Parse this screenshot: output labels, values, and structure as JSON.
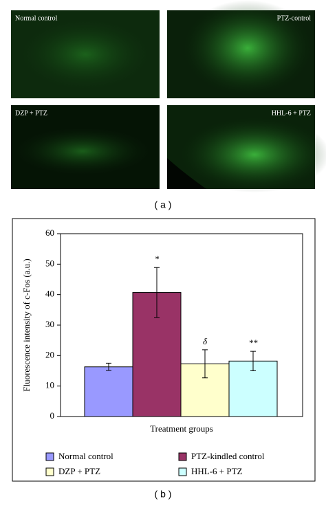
{
  "panels": [
    "Normal control",
    "PTZ-control",
    "DZP + PTZ",
    "HHL-6 + PTZ"
  ],
  "panel_a_caption": "( a )",
  "panel_b_caption": "( b )",
  "chart_data": {
    "type": "bar",
    "ylabel": "Fluorescence intensity of c-Fos (a.u.)",
    "xlabel": "Treatment groups",
    "ylim": [
      0,
      60
    ],
    "yticks": [
      0,
      10,
      20,
      30,
      40,
      50,
      60
    ],
    "series": [
      {
        "name": "Normal control",
        "color": "#9999ff",
        "values": [
          16.3
        ],
        "errors": [
          1.2
        ]
      },
      {
        "name": "PTZ-kindled control",
        "color": "#993366",
        "values": [
          40.7
        ],
        "errors": [
          8.2
        ],
        "annotation": "*"
      },
      {
        "name": "DZP + PTZ",
        "color": "#ffffcc",
        "values": [
          17.3
        ],
        "errors": [
          4.6
        ],
        "annotation": "δ"
      },
      {
        "name": "HHL-6 + PTZ",
        "color": "#ccffff",
        "values": [
          18.2
        ],
        "errors": [
          3.2
        ],
        "annotation": "**"
      }
    ]
  }
}
